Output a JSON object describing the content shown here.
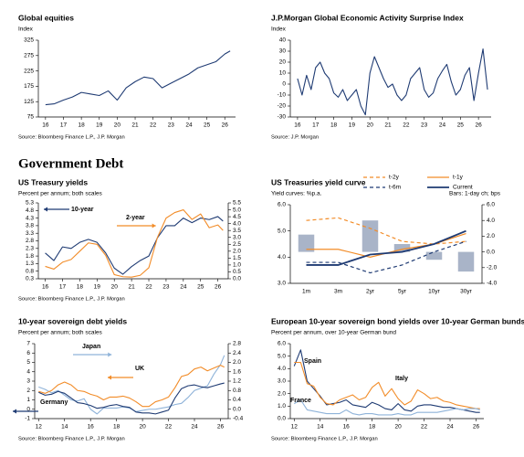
{
  "heading": "Government Debt",
  "chart_data": [
    {
      "type": "line",
      "title": "Global equities",
      "subtitle": "Index",
      "source": "Source: Bloomberg Finance L.P., J.P. Morgan",
      "x": [
        2016,
        2016.5,
        2017,
        2017.5,
        2018,
        2018.5,
        2019,
        2019.5,
        2020,
        2020.5,
        2021,
        2021.5,
        2022,
        2022.5,
        2023,
        2023.5,
        2024,
        2024.5,
        2025,
        2025.5,
        2026,
        2026.3
      ],
      "xlim": [
        2015.6,
        2026.6
      ],
      "xticks": [
        {
          "value": 2016,
          "label": "16"
        },
        {
          "value": 2017,
          "label": "17"
        },
        {
          "value": 2018,
          "label": "18"
        },
        {
          "value": 2019,
          "label": "19"
        },
        {
          "value": 2020,
          "label": "20"
        },
        {
          "value": 2021,
          "label": "21"
        },
        {
          "value": 2022,
          "label": "22"
        },
        {
          "value": 2023,
          "label": "23"
        },
        {
          "value": 2024,
          "label": "24"
        },
        {
          "value": 2025,
          "label": "25"
        },
        {
          "value": 2026,
          "label": "26"
        }
      ],
      "ylim": [
        75,
        325
      ],
      "yticks": [
        75,
        125,
        175,
        225,
        275,
        325
      ],
      "series": [
        {
          "color": "#1f3b73",
          "values": [
            115,
            118,
            130,
            140,
            155,
            150,
            145,
            160,
            130,
            170,
            190,
            205,
            200,
            170,
            185,
            200,
            215,
            235,
            245,
            255,
            280,
            290
          ]
        }
      ]
    },
    {
      "type": "line",
      "title": "J.P.Morgan Global Economic Activity Surprise Index",
      "subtitle": "Index",
      "source": "Source: J.P. Morgan",
      "x": [
        2016,
        2016.25,
        2016.5,
        2016.75,
        2017,
        2017.25,
        2017.5,
        2017.75,
        2018,
        2018.25,
        2018.5,
        2018.75,
        2019,
        2019.25,
        2019.5,
        2019.75,
        2020,
        2020.25,
        2020.5,
        2020.75,
        2021,
        2021.25,
        2021.5,
        2021.75,
        2022,
        2022.25,
        2022.5,
        2022.75,
        2023,
        2023.25,
        2023.5,
        2023.75,
        2024,
        2024.25,
        2024.5,
        2024.75,
        2025,
        2025.25,
        2025.5,
        2025.75,
        2026,
        2026.25,
        2026.5
      ],
      "xlim": [
        2015.6,
        2026.7
      ],
      "xticks": [
        {
          "value": 2016,
          "label": "16"
        },
        {
          "value": 2017,
          "label": "17"
        },
        {
          "value": 2018,
          "label": "18"
        },
        {
          "value": 2019,
          "label": "19"
        },
        {
          "value": 2020,
          "label": "20"
        },
        {
          "value": 2021,
          "label": "21"
        },
        {
          "value": 2022,
          "label": "22"
        },
        {
          "value": 2023,
          "label": "23"
        },
        {
          "value": 2024,
          "label": "24"
        },
        {
          "value": 2025,
          "label": "25"
        },
        {
          "value": 2026,
          "label": "26"
        }
      ],
      "ylim": [
        -30,
        40
      ],
      "yticks": [
        -30,
        -20,
        -10,
        0,
        10,
        20,
        30,
        40
      ],
      "series": [
        {
          "color": "#1f3b73",
          "values": [
            5,
            -10,
            8,
            -5,
            15,
            20,
            10,
            5,
            -8,
            -12,
            -5,
            -15,
            -10,
            -5,
            -20,
            -28,
            10,
            25,
            15,
            5,
            -3,
            0,
            -10,
            -15,
            -10,
            5,
            10,
            15,
            -5,
            -12,
            -8,
            5,
            12,
            18,
            2,
            -10,
            -5,
            8,
            15,
            -15,
            10,
            32,
            -5
          ]
        }
      ]
    },
    {
      "type": "line",
      "title": "US Treasury yields",
      "subtitle": "Percent per annum; both scales",
      "source": "Source: Bloomberg Finance L.P., J.P. Morgan",
      "x": [
        2016,
        2016.5,
        2017,
        2017.5,
        2018,
        2018.5,
        2019,
        2019.5,
        2020,
        2020.5,
        2021,
        2021.5,
        2022,
        2022.5,
        2023,
        2023.5,
        2024,
        2024.5,
        2025,
        2025.5,
        2026,
        2026.3
      ],
      "xlim": [
        2015.6,
        2026.6
      ],
      "xticks": [
        {
          "value": 2016,
          "label": "16"
        },
        {
          "value": 2017,
          "label": "17"
        },
        {
          "value": 2018,
          "label": "18"
        },
        {
          "value": 2019,
          "label": "19"
        },
        {
          "value": 2020,
          "label": "20"
        },
        {
          "value": 2021,
          "label": "21"
        },
        {
          "value": 2022,
          "label": "22"
        },
        {
          "value": 2023,
          "label": "23"
        },
        {
          "value": 2024,
          "label": "24"
        },
        {
          "value": 2025,
          "label": "25"
        },
        {
          "value": 2026,
          "label": "26"
        }
      ],
      "ylim": [
        0.3,
        5.3
      ],
      "yticks": [
        0.3,
        0.8,
        1.3,
        1.8,
        2.3,
        2.8,
        3.3,
        3.8,
        4.3,
        4.8,
        5.3
      ],
      "y2lim": [
        0,
        5.5
      ],
      "y2ticks": [
        {
          "value": 0,
          "label": "0.0"
        },
        0.5,
        {
          "value": 1,
          "label": "1.0"
        },
        1.5,
        {
          "value": 2,
          "label": "2.0"
        },
        2.5,
        {
          "value": 3,
          "label": "3.0"
        },
        3.5,
        {
          "value": 4,
          "label": "4.0"
        },
        4.5,
        {
          "value": 5,
          "label": "5.0"
        },
        5.5
      ],
      "series": [
        {
          "name": "10-year",
          "color": "#1f3b73",
          "values": [
            2.0,
            1.5,
            2.4,
            2.3,
            2.7,
            2.9,
            2.7,
            2.0,
            1.0,
            0.6,
            1.1,
            1.5,
            1.8,
            3.0,
            3.8,
            3.8,
            4.3,
            4.0,
            4.3,
            4.2,
            4.4,
            4.1
          ]
        },
        {
          "name": "2-year",
          "color": "#f28c28",
          "axis": "y2",
          "values": [
            0.9,
            0.7,
            1.2,
            1.4,
            2.0,
            2.6,
            2.5,
            1.7,
            0.3,
            0.15,
            0.12,
            0.25,
            0.8,
            3.0,
            4.4,
            4.8,
            5.0,
            4.3,
            4.7,
            3.7,
            3.9,
            3.5
          ]
        }
      ]
    },
    {
      "type": "combo",
      "title": "US Treasuries yield curve",
      "subtitle": "Yield curves: %p.a.",
      "y2_label": "Bars: 1-day ch; bps",
      "legend": "top",
      "categories": [
        "1m",
        "3m",
        "2yr",
        "5yr",
        "10yr",
        "30yr"
      ],
      "ylim": [
        3,
        6
      ],
      "yticks": [
        {
          "value": 3,
          "label": "3.0"
        },
        {
          "value": 4,
          "label": "4.0"
        },
        {
          "value": 5,
          "label": "5.0"
        },
        {
          "value": 6,
          "label": "6.0"
        }
      ],
      "y2lim": [
        -4,
        6
      ],
      "y2ticks": [
        {
          "value": -4,
          "label": "-4.0"
        },
        {
          "value": -2,
          "label": "-2.0"
        },
        {
          "value": 0,
          "label": "0.0"
        },
        {
          "value": 2,
          "label": "2.0"
        },
        {
          "value": 4,
          "label": "4.0"
        },
        {
          "value": 6,
          "label": "6.0"
        }
      ],
      "series": [
        {
          "type": "bar",
          "axis": "y2",
          "color": "#a9b4c8",
          "values": [
            2.2,
            0,
            4.0,
            1.0,
            -1.0,
            -2.5
          ]
        },
        {
          "type": "line",
          "name": "t-2y",
          "color": "#f28c28",
          "dash": true,
          "values": [
            5.4,
            5.5,
            5.1,
            4.6,
            4.5,
            4.6
          ]
        },
        {
          "type": "line",
          "name": "t-1y",
          "color": "#f28c28",
          "values": [
            4.3,
            4.3,
            4.0,
            4.3,
            4.5,
            4.9
          ]
        },
        {
          "type": "line",
          "name": "t-6m",
          "color": "#1f3b73",
          "dash": true,
          "values": [
            3.8,
            3.8,
            3.4,
            3.7,
            4.2,
            4.6
          ]
        },
        {
          "type": "line",
          "name": "Current",
          "color": "#1f3b73",
          "values": [
            3.7,
            3.7,
            4.1,
            4.2,
            4.5,
            5.0
          ]
        }
      ]
    },
    {
      "type": "line",
      "title": "10-year sovereign debt yields",
      "subtitle": "Percent per annum; both scales",
      "source": "Source: Bloomberg Finance L.P., J.P. Morgan",
      "x": [
        2012,
        2012.5,
        2013,
        2013.5,
        2014,
        2014.5,
        2015,
        2015.5,
        2016,
        2016.5,
        2017,
        2017.5,
        2018,
        2018.5,
        2019,
        2019.5,
        2020,
        2020.5,
        2021,
        2021.5,
        2022,
        2022.5,
        2023,
        2023.5,
        2024,
        2024.5,
        2025,
        2025.5,
        2026,
        2026.3
      ],
      "xlim": [
        2011.7,
        2026.6
      ],
      "xticks": [
        {
          "value": 2012,
          "label": "12"
        },
        {
          "value": 2014,
          "label": "14"
        },
        {
          "value": 2016,
          "label": "16"
        },
        {
          "value": 2018,
          "label": "18"
        },
        {
          "value": 2020,
          "label": "20"
        },
        {
          "value": 2022,
          "label": "22"
        },
        {
          "value": 2024,
          "label": "24"
        },
        {
          "value": 2026,
          "label": "26"
        }
      ],
      "ylim": [
        -1,
        7
      ],
      "yticks": [
        -1,
        0,
        1,
        2,
        3,
        4,
        5,
        6,
        7
      ],
      "y2lim": [
        -0.4,
        2.8
      ],
      "y2ticks": [
        -0.4,
        {
          "value": 0,
          "label": "0.0"
        },
        0.4,
        0.8,
        1.2,
        1.6,
        {
          "value": 2,
          "label": "2.0"
        },
        2.4,
        2.8
      ],
      "series": [
        {
          "name": "Japan",
          "color": "#8fb3d9",
          "axis": "y2",
          "values": [
            0.95,
            0.85,
            0.7,
            0.8,
            0.6,
            0.4,
            0.35,
            0.45,
            0.0,
            -0.2,
            0.05,
            0.05,
            0.05,
            0.1,
            0.05,
            -0.1,
            -0.05,
            0.0,
            0.0,
            0.05,
            0.1,
            0.2,
            0.25,
            0.5,
            0.8,
            0.9,
            1.0,
            1.5,
            1.9,
            2.3
          ]
        },
        {
          "name": "UK",
          "color": "#f28c28",
          "values": [
            1.9,
            1.7,
            2.0,
            2.6,
            2.9,
            2.6,
            2.0,
            1.9,
            1.6,
            1.4,
            1.0,
            1.3,
            1.3,
            1.4,
            1.2,
            0.8,
            0.3,
            0.3,
            0.8,
            1.0,
            1.3,
            2.3,
            3.5,
            3.7,
            4.3,
            4.5,
            4.1,
            4.4,
            4.7,
            4.5
          ]
        },
        {
          "name": "Germany",
          "color": "#1f3b73",
          "values": [
            1.8,
            1.5,
            1.6,
            1.9,
            1.7,
            1.2,
            0.7,
            0.6,
            0.4,
            0.1,
            0.2,
            0.4,
            0.5,
            0.3,
            0.2,
            -0.3,
            -0.4,
            -0.4,
            -0.5,
            -0.3,
            -0.1,
            1.2,
            2.2,
            2.5,
            2.6,
            2.4,
            2.3,
            2.5,
            2.7,
            2.8
          ]
        }
      ]
    },
    {
      "type": "line",
      "title": "European 10-year sovereign bond yields over 10-year German bunds",
      "subtitle": "Percent per annum, over 10-year German bund",
      "source": "Source: Bloomberg Finance L.P., J.P. Morgan",
      "x": [
        2012,
        2012.5,
        2013,
        2013.5,
        2014,
        2014.5,
        2015,
        2015.5,
        2016,
        2016.5,
        2017,
        2017.5,
        2018,
        2018.5,
        2019,
        2019.5,
        2020,
        2020.5,
        2021,
        2021.5,
        2022,
        2022.5,
        2023,
        2023.5,
        2024,
        2024.5,
        2025,
        2025.5,
        2026,
        2026.3
      ],
      "xlim": [
        2011.7,
        2026.6
      ],
      "xticks": [
        {
          "value": 2012,
          "label": "12"
        },
        {
          "value": 2014,
          "label": "14"
        },
        {
          "value": 2016,
          "label": "16"
        },
        {
          "value": 2018,
          "label": "18"
        },
        {
          "value": 2020,
          "label": "20"
        },
        {
          "value": 2022,
          "label": "22"
        },
        {
          "value": 2024,
          "label": "24"
        },
        {
          "value": 2026,
          "label": "26"
        }
      ],
      "ylim": [
        0,
        6
      ],
      "yticks": [
        {
          "value": 0,
          "label": "0.0"
        },
        {
          "value": 1,
          "label": "1.0"
        },
        {
          "value": 2,
          "label": "2.0"
        },
        {
          "value": 3,
          "label": "3.0"
        },
        {
          "value": 4,
          "label": "4.0"
        },
        {
          "value": 5,
          "label": "5.0"
        },
        {
          "value": 6,
          "label": "6.0"
        }
      ],
      "series": [
        {
          "name": "Spain",
          "color": "#1f3b73",
          "values": [
            4.2,
            5.5,
            3.0,
            2.4,
            1.8,
            1.1,
            1.2,
            1.3,
            1.5,
            1.1,
            1.0,
            0.9,
            1.3,
            1.1,
            0.8,
            0.7,
            1.2,
            0.7,
            0.6,
            1.0,
            1.1,
            1.1,
            1.0,
            0.9,
            0.9,
            0.8,
            0.7,
            0.6,
            0.5,
            0.5
          ]
        },
        {
          "name": "Italy",
          "color": "#f28c28",
          "values": [
            4.5,
            4.5,
            2.8,
            2.6,
            1.7,
            1.2,
            1.1,
            1.5,
            1.7,
            1.9,
            1.5,
            1.7,
            2.5,
            2.9,
            1.8,
            2.4,
            1.6,
            1.1,
            1.4,
            2.3,
            2.0,
            1.6,
            1.7,
            1.4,
            1.3,
            1.1,
            1.0,
            0.9,
            0.8,
            0.8
          ]
        },
        {
          "name": "France",
          "color": "#8fb3d9",
          "values": [
            1.2,
            1.5,
            0.7,
            0.6,
            0.5,
            0.4,
            0.4,
            0.4,
            0.7,
            0.4,
            0.3,
            0.4,
            0.4,
            0.3,
            0.3,
            0.3,
            0.4,
            0.3,
            0.3,
            0.5,
            0.5,
            0.5,
            0.5,
            0.6,
            0.7,
            0.8,
            0.7,
            0.8,
            0.8,
            0.7
          ]
        }
      ]
    }
  ]
}
